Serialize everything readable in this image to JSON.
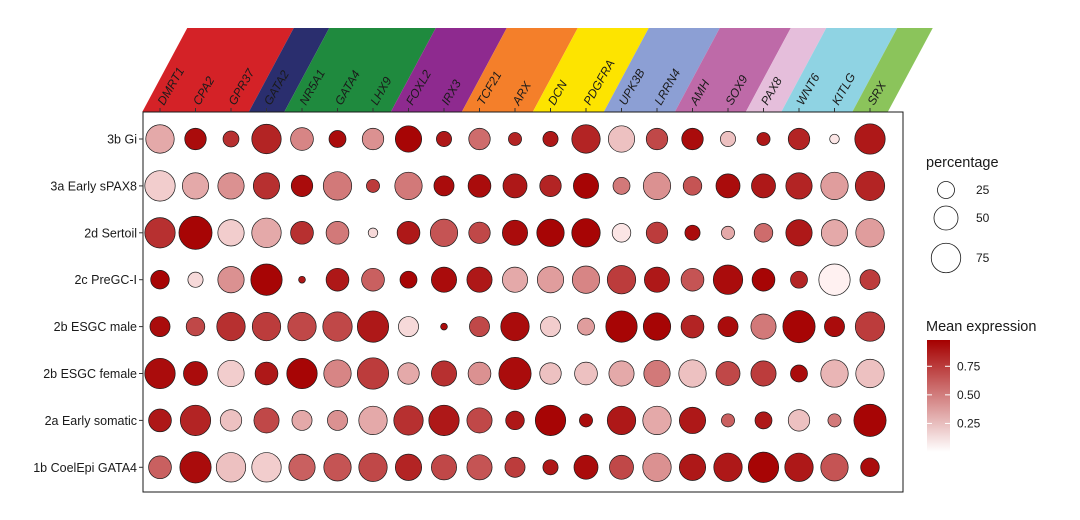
{
  "chart_data": {
    "type": "dot",
    "title": "",
    "genes": [
      "DMRT1",
      "CPA2",
      "GPR37",
      "GATA2",
      "NR5A1",
      "GATA4",
      "LHX9",
      "FOXL2",
      "IRX3",
      "TCF21",
      "ARX",
      "DCN",
      "PDGFRA",
      "UPK3B",
      "LRRN4",
      "AMH",
      "SOX9",
      "PAX8",
      "WNT6",
      "KITLG",
      "SRX"
    ],
    "cell_types": [
      "3b Gi",
      "3a Early sPAX8",
      "2d Sertoil",
      "2c PreGC-I",
      "2b ESGC male",
      "2b ESGC female",
      "2a Early somatic",
      "1b CoelEpi GATA4"
    ],
    "groups": [
      {
        "color": "#d42227",
        "genes": [
          "DMRT1",
          "CPA2",
          "GPR37"
        ]
      },
      {
        "color": "#2a2e6e",
        "genes": [
          "GATA2"
        ]
      },
      {
        "color": "#1f8a3e",
        "genes": [
          "NR5A1",
          "GATA4",
          "LHX9"
        ]
      },
      {
        "color": "#8e2a8f",
        "genes": [
          "FOXL2",
          "IRX3"
        ]
      },
      {
        "color": "#f47f2a",
        "genes": [
          "TCF21",
          "ARX"
        ]
      },
      {
        "color": "#fde400",
        "genes": [
          "DCN",
          "PDGFRA"
        ]
      },
      {
        "color": "#8c9fd4",
        "genes": [
          "UPK3B",
          "LRRN4"
        ]
      },
      {
        "color": "#be6aa8",
        "genes": [
          "AMH",
          "SOX9"
        ]
      },
      {
        "color": "#e5bedb",
        "genes": [
          "PAX8"
        ]
      },
      {
        "color": "#8fd3e3",
        "genes": [
          "WNT6",
          "KITLG"
        ]
      },
      {
        "color": "#8bc45b",
        "genes": [
          "SRX"
        ]
      }
    ],
    "percentage": [
      [
        70,
        40,
        22,
        75,
        45,
        25,
        40,
        60,
        20,
        40,
        15,
        20,
        70,
        60,
        40,
        40,
        20,
        15,
        40,
        8,
        80
      ],
      [
        80,
        60,
        60,
        60,
        40,
        70,
        15,
        65,
        35,
        45,
        50,
        40,
        55,
        25,
        65,
        30,
        50,
        50,
        60,
        65,
        75
      ],
      [
        80,
        95,
        60,
        75,
        45,
        45,
        8,
        45,
        65,
        40,
        55,
        65,
        70,
        30,
        40,
        20,
        15,
        30,
        60,
        60,
        70
      ],
      [
        30,
        20,
        60,
        85,
        4,
        45,
        45,
        25,
        55,
        55,
        55,
        60,
        65,
        70,
        55,
        45,
        75,
        45,
        25,
        85,
        35
      ],
      [
        35,
        30,
        70,
        70,
        70,
        75,
        85,
        35,
        4,
        35,
        70,
        35,
        25,
        85,
        65,
        45,
        35,
        55,
        90,
        35,
        75
      ],
      [
        80,
        50,
        60,
        45,
        80,
        65,
        85,
        40,
        55,
        45,
        90,
        40,
        45,
        55,
        60,
        65,
        50,
        55,
        25,
        65,
        70
      ],
      [
        45,
        80,
        40,
        55,
        35,
        35,
        70,
        75,
        80,
        55,
        30,
        80,
        15,
        70,
        70,
        60,
        15,
        25,
        40,
        15,
        90
      ],
      [
        45,
        85,
        75,
        75,
        60,
        65,
        70,
        60,
        55,
        55,
        35,
        20,
        50,
        50,
        70,
        60,
        70,
        80,
        70,
        65,
        30
      ]
    ],
    "mean_expression": [
      [
        0.3,
        0.95,
        0.8,
        0.85,
        0.45,
        0.95,
        0.4,
        0.98,
        0.9,
        0.55,
        0.85,
        0.9,
        0.85,
        0.2,
        0.7,
        0.95,
        0.2,
        0.9,
        0.85,
        0.05,
        0.9
      ],
      [
        0.15,
        0.3,
        0.4,
        0.8,
        0.95,
        0.5,
        0.75,
        0.5,
        0.95,
        0.95,
        0.9,
        0.85,
        0.98,
        0.5,
        0.4,
        0.65,
        0.95,
        0.9,
        0.85,
        0.35,
        0.85
      ],
      [
        0.8,
        0.98,
        0.15,
        0.3,
        0.8,
        0.5,
        0.1,
        0.9,
        0.65,
        0.7,
        0.95,
        0.98,
        0.98,
        0.05,
        0.75,
        0.95,
        0.3,
        0.55,
        0.9,
        0.3,
        0.35
      ],
      [
        0.98,
        0.1,
        0.4,
        0.98,
        0.9,
        0.9,
        0.6,
        0.98,
        0.95,
        0.9,
        0.3,
        0.35,
        0.45,
        0.75,
        0.9,
        0.65,
        0.95,
        0.98,
        0.85,
        0.0,
        0.75
      ],
      [
        0.95,
        0.7,
        0.8,
        0.75,
        0.7,
        0.7,
        0.9,
        0.1,
        0.95,
        0.7,
        0.95,
        0.15,
        0.35,
        0.98,
        0.98,
        0.85,
        0.95,
        0.5,
        0.98,
        0.95,
        0.75
      ],
      [
        0.95,
        0.95,
        0.15,
        0.9,
        0.98,
        0.45,
        0.75,
        0.3,
        0.8,
        0.4,
        0.95,
        0.2,
        0.2,
        0.3,
        0.5,
        0.2,
        0.7,
        0.75,
        0.95,
        0.25,
        0.2
      ],
      [
        0.9,
        0.85,
        0.2,
        0.7,
        0.3,
        0.4,
        0.3,
        0.8,
        0.9,
        0.7,
        0.9,
        0.98,
        0.95,
        0.9,
        0.3,
        0.9,
        0.6,
        0.9,
        0.2,
        0.5,
        0.98
      ],
      [
        0.6,
        0.95,
        0.2,
        0.15,
        0.6,
        0.65,
        0.7,
        0.85,
        0.7,
        0.65,
        0.75,
        0.9,
        0.95,
        0.7,
        0.4,
        0.9,
        0.9,
        0.98,
        0.9,
        0.65,
        0.95
      ]
    ],
    "size_legend": {
      "title": "percentage",
      "breaks": [
        25,
        50,
        75
      ]
    },
    "color_legend": {
      "title": "Mean expression",
      "breaks": [
        0.75,
        0.5,
        0.25
      ],
      "low_color": "#fff1f1",
      "high_color": "#a50000"
    },
    "grid": false
  }
}
